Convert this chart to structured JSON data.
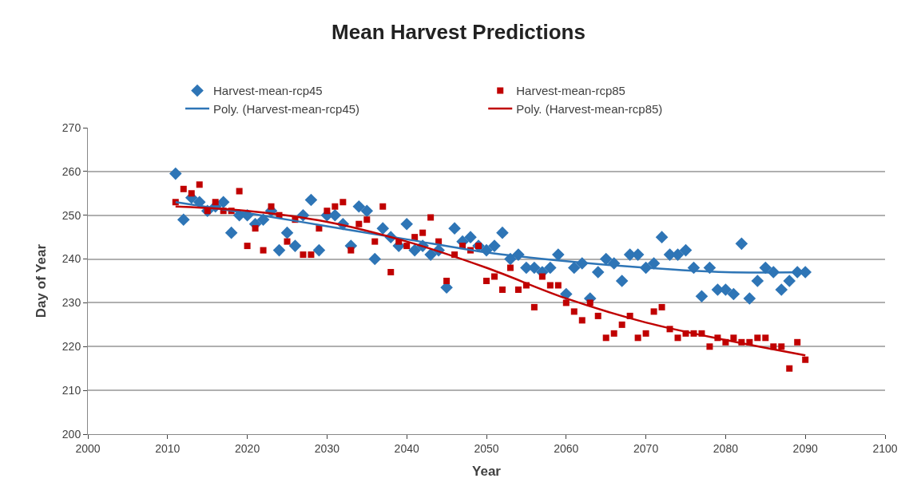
{
  "chart_data": {
    "type": "scatter",
    "title": "Mean Harvest Predictions",
    "xlabel": "Year",
    "ylabel": "Day of Year",
    "xlim": [
      2000,
      2100
    ],
    "xticks": [
      2000,
      2010,
      2020,
      2030,
      2040,
      2050,
      2060,
      2070,
      2080,
      2090,
      2100
    ],
    "ylim": [
      200,
      270
    ],
    "yticks": [
      200,
      210,
      220,
      230,
      240,
      250,
      260,
      270
    ],
    "grid": "y",
    "legend": "top",
    "x": [
      2011,
      2012,
      2013,
      2014,
      2015,
      2016,
      2017,
      2018,
      2019,
      2020,
      2021,
      2022,
      2023,
      2024,
      2025,
      2026,
      2027,
      2028,
      2029,
      2030,
      2031,
      2032,
      2033,
      2034,
      2035,
      2036,
      2037,
      2038,
      2039,
      2040,
      2041,
      2042,
      2043,
      2044,
      2045,
      2046,
      2047,
      2048,
      2049,
      2050,
      2051,
      2052,
      2053,
      2054,
      2055,
      2056,
      2057,
      2058,
      2059,
      2060,
      2061,
      2062,
      2063,
      2064,
      2065,
      2066,
      2067,
      2068,
      2069,
      2070,
      2071,
      2072,
      2073,
      2074,
      2075,
      2076,
      2077,
      2078,
      2079,
      2080,
      2081,
      2082,
      2083,
      2084,
      2085,
      2086,
      2087,
      2088,
      2089,
      2090
    ],
    "series": [
      {
        "name": "Harvest-mean-rcp45",
        "marker": "diamond",
        "color": "#2e75b6",
        "values": [
          259.5,
          249,
          254,
          253,
          251,
          252,
          253,
          246,
          250,
          250,
          248,
          249,
          251,
          242,
          246,
          243,
          250,
          253.5,
          242,
          250,
          250,
          248,
          243,
          252,
          251,
          240,
          247,
          245,
          243,
          248,
          242,
          243,
          241,
          242,
          233.5,
          247,
          244,
          245,
          243,
          242,
          243,
          246,
          240,
          241,
          238,
          238,
          237,
          238,
          241,
          232,
          238,
          239,
          231,
          237,
          240,
          239,
          235,
          241,
          241,
          238,
          239,
          245,
          241,
          241,
          242,
          238,
          231.5,
          238,
          233,
          233,
          232,
          243.5,
          231,
          235,
          238,
          237,
          233,
          235,
          237,
          237
        ]
      },
      {
        "name": "Harvest-mean-rcp85",
        "marker": "square",
        "color": "#c00000",
        "values": [
          253,
          256,
          255,
          257,
          251,
          253,
          251,
          251,
          255.5,
          243,
          247,
          242,
          252,
          250,
          244,
          249,
          241,
          241,
          247,
          251,
          252,
          253,
          242,
          248,
          249,
          244,
          252,
          237,
          244,
          243,
          245,
          246,
          249.5,
          244,
          235,
          241,
          243,
          242,
          243,
          235,
          236,
          233,
          238,
          233,
          234,
          229,
          236,
          234,
          234,
          230,
          228,
          226,
          230,
          227,
          222,
          223,
          225,
          227,
          222,
          223,
          228,
          229,
          224,
          222,
          223,
          223,
          223,
          220,
          222,
          221,
          222,
          221,
          221,
          222,
          222,
          220,
          220,
          215,
          221,
          217
        ]
      },
      {
        "name": "Poly. (Harvest-mean-rcp45)",
        "type": "line",
        "marker": "none",
        "line_style": "solid",
        "color": "#2e75b6",
        "x": [
          2011,
          2020,
          2030,
          2040,
          2050,
          2060,
          2070,
          2080,
          2090
        ],
        "values": [
          253,
          250.5,
          247.5,
          244.5,
          241.5,
          239.5,
          238,
          237,
          237
        ]
      },
      {
        "name": "Poly. (Harvest-mean-rcp85)",
        "type": "line",
        "marker": "none",
        "line_style": "solid",
        "color": "#c00000",
        "x": [
          2011,
          2020,
          2030,
          2040,
          2050,
          2060,
          2070,
          2080,
          2090
        ],
        "values": [
          252,
          251,
          248.5,
          244,
          238,
          231,
          225.5,
          221.5,
          218
        ]
      }
    ]
  }
}
